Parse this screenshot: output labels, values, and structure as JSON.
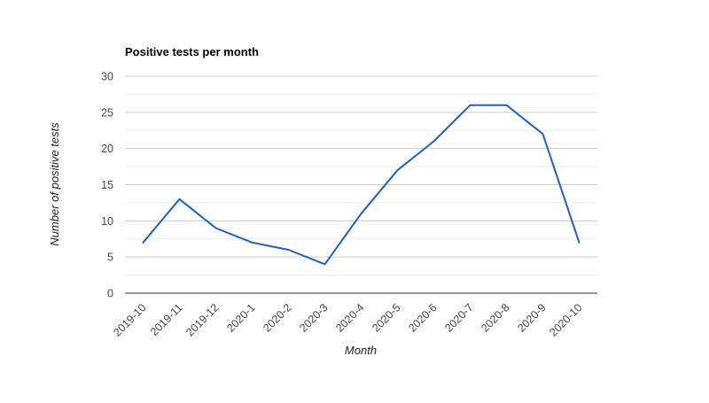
{
  "chart_data": {
    "type": "line",
    "title": "Positive tests per month",
    "xlabel": "Month",
    "ylabel": "Number of positive tests",
    "categories": [
      "2019-10",
      "2019-11",
      "2019-12",
      "2020-1",
      "2020-2",
      "2020-3",
      "2020-4",
      "2020-5",
      "2020-6",
      "2020-7",
      "2020-8",
      "2020-9",
      "2020-10"
    ],
    "series": [
      {
        "values": [
          7,
          13,
          9,
          7,
          6,
          4,
          11,
          17,
          21,
          26,
          26,
          22,
          7
        ],
        "color": "#1f5fc6"
      }
    ],
    "ylim": [
      0,
      30
    ],
    "yticks": [
      "0",
      "5",
      "10",
      "15",
      "20",
      "25",
      "30"
    ],
    "grid": true,
    "legend": "none"
  }
}
